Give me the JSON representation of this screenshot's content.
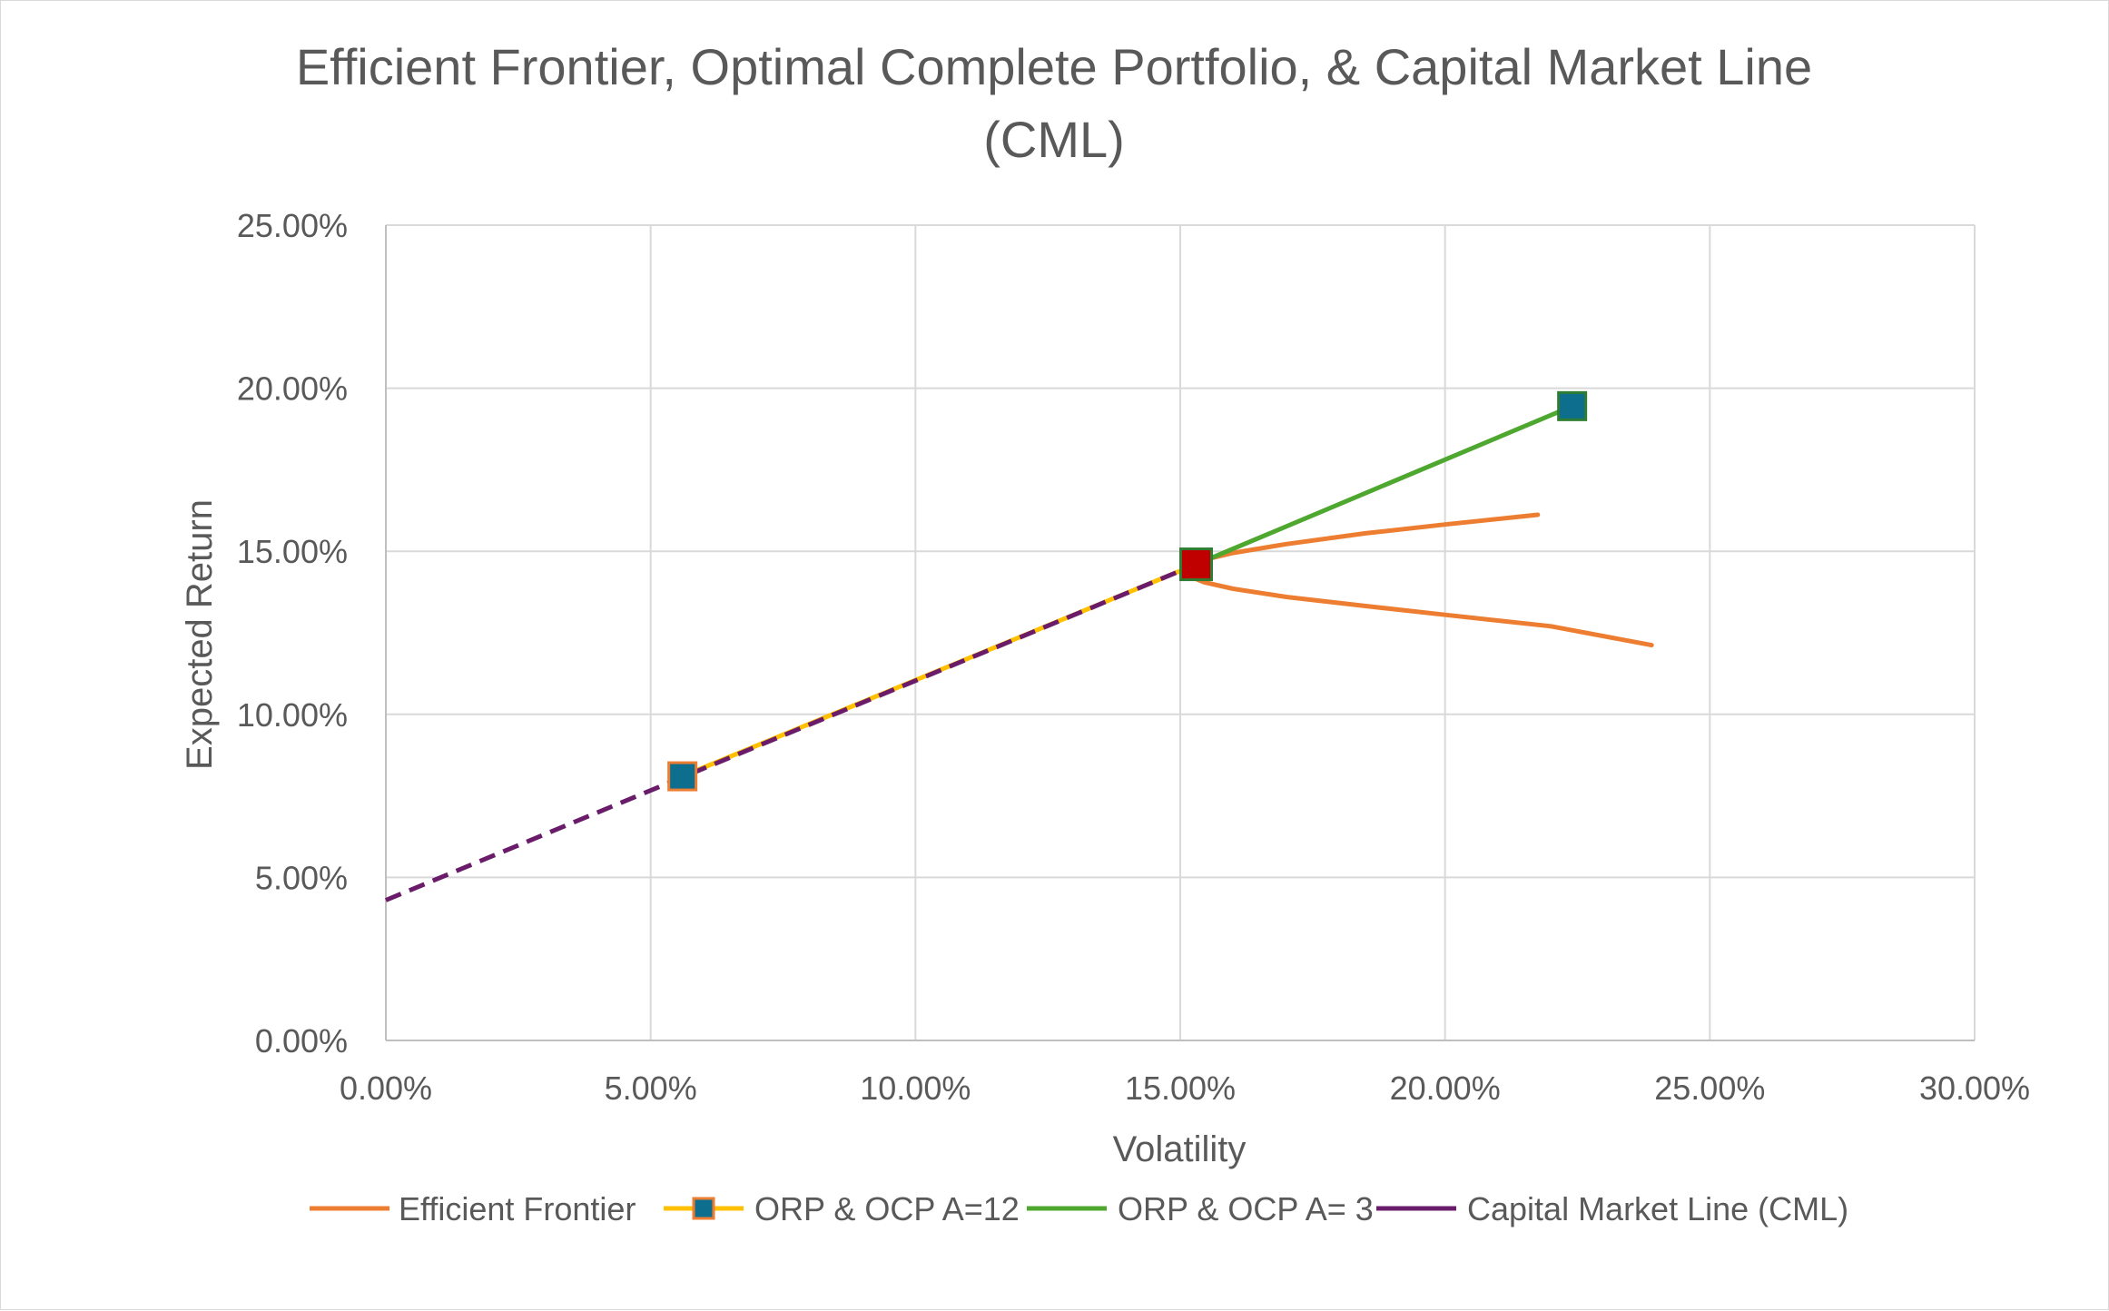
{
  "chart_data": {
    "type": "line",
    "title_lines": [
      "Efficient Frontier, Optimal Complete Portfolio, & Capital Market Line",
      "(CML)"
    ],
    "xlabel": "Volatility",
    "ylabel": "Expected Return",
    "xlim": [
      0,
      0.3
    ],
    "ylim": [
      0,
      0.25
    ],
    "x_ticks": [
      0,
      0.05,
      0.1,
      0.15,
      0.2,
      0.25,
      0.3
    ],
    "x_tick_labels": [
      "0.00%",
      "5.00%",
      "10.00%",
      "15.00%",
      "20.00%",
      "25.00%",
      "30.00%"
    ],
    "y_ticks": [
      0,
      0.05,
      0.1,
      0.15,
      0.2,
      0.25
    ],
    "y_tick_labels": [
      "0.00%",
      "5.00%",
      "10.00%",
      "15.00%",
      "20.00%",
      "25.00%"
    ],
    "grid": true,
    "legend_position": "bottom",
    "series": [
      {
        "name": "Efficient Frontier",
        "color": "#ED7D31",
        "style": "solid",
        "marker": "none",
        "points": [
          [
            0.2175,
            0.1612
          ],
          [
            0.2,
            0.1582
          ],
          [
            0.185,
            0.1555
          ],
          [
            0.17,
            0.1522
          ],
          [
            0.16,
            0.1495
          ],
          [
            0.154,
            0.1472
          ],
          [
            0.1515,
            0.1455
          ],
          [
            0.1508,
            0.144
          ],
          [
            0.1515,
            0.1425
          ],
          [
            0.1545,
            0.1405
          ],
          [
            0.16,
            0.1385
          ],
          [
            0.17,
            0.136
          ],
          [
            0.185,
            0.1332
          ],
          [
            0.2,
            0.1305
          ],
          [
            0.22,
            0.127
          ],
          [
            0.239,
            0.1212
          ]
        ]
      },
      {
        "name": "ORP & OCP A=12",
        "color": "#FFC000",
        "style": "solid",
        "marker": "square",
        "marker_fill": "#0E6E8E",
        "marker_stroke": "#ED7D31",
        "points": [
          [
            0.056,
            0.081
          ],
          [
            0.153,
            0.146
          ]
        ]
      },
      {
        "name": "ORP & OCP A= 3",
        "color": "#4EA72E",
        "style": "solid",
        "marker": "square",
        "marker_fill": "#0E6E8E",
        "marker_stroke": "#2E7D32",
        "points": [
          [
            0.153,
            0.146
          ],
          [
            0.224,
            0.1945
          ]
        ]
      },
      {
        "name": "Capital Market Line (CML)",
        "color": "#6A1B6A",
        "style": "dashed",
        "marker": "none",
        "points": [
          [
            0.0,
            0.043
          ],
          [
            0.153,
            0.146
          ]
        ]
      }
    ],
    "highlight_point": {
      "x": 0.153,
      "y": 0.146,
      "marker_fill": "#C00000",
      "marker_stroke": "#2E7D32"
    }
  }
}
